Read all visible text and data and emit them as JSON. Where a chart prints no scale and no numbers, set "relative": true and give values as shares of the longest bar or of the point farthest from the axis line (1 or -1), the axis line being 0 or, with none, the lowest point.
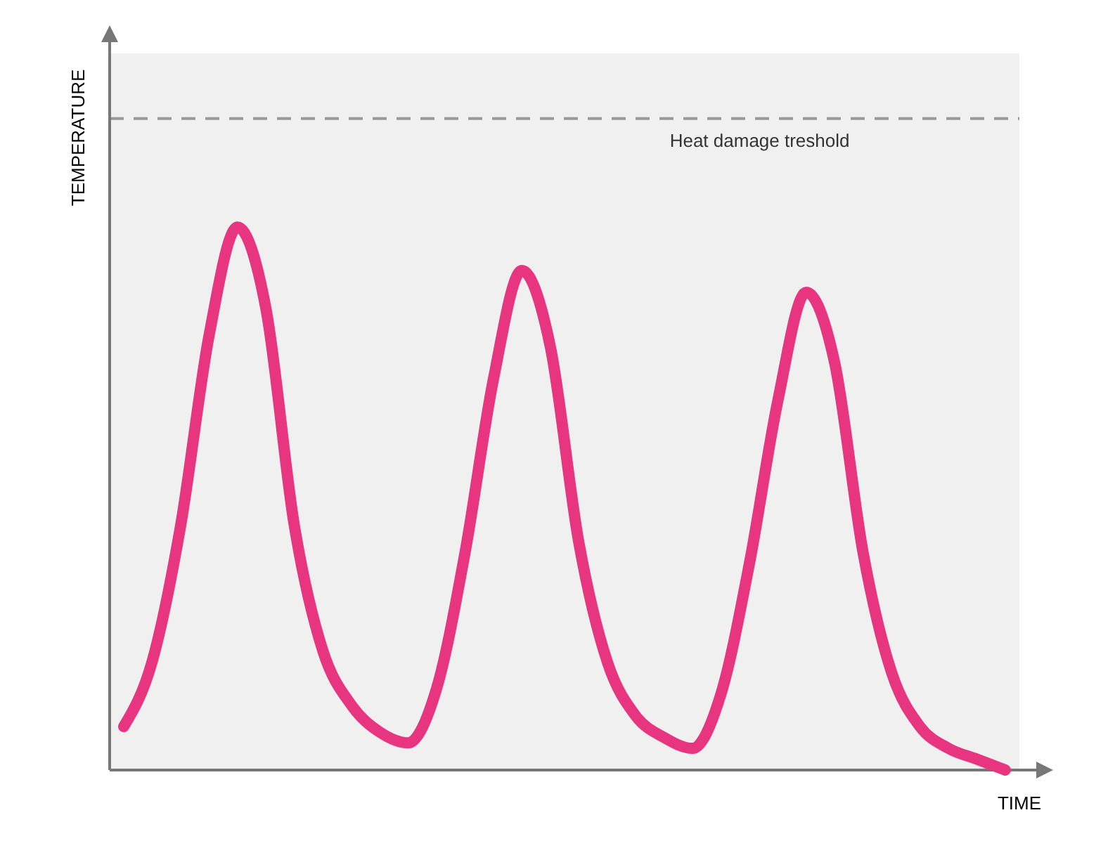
{
  "chart_data": {
    "type": "line",
    "relative": true,
    "xlabel": "TIME",
    "ylabel": "TEMPERATURE",
    "categories": [
      null,
      null,
      null,
      null,
      null,
      null,
      null,
      null,
      null,
      null,
      null,
      null,
      null,
      null,
      null,
      null,
      null,
      null,
      null,
      null,
      null,
      null,
      null,
      null,
      null,
      null,
      null,
      null,
      null,
      null,
      null,
      null
    ],
    "series": [
      {
        "color": "#e8357f",
        "values": [
          0.08,
          0.2,
          0.45,
          0.8,
          1.0,
          0.85,
          0.45,
          0.22,
          0.12,
          0.07,
          0.05,
          0.15,
          0.4,
          0.72,
          0.92,
          0.78,
          0.42,
          0.2,
          0.1,
          0.06,
          0.04,
          0.14,
          0.38,
          0.68,
          0.88,
          0.75,
          0.4,
          0.18,
          0.08,
          0.04,
          0.02,
          0
        ]
      }
    ],
    "ref_lines": [
      {
        "axis": "y",
        "value": 1.2,
        "label": "Heat damage treshold",
        "color": "#999999",
        "line_style": "dashed"
      }
    ],
    "marker": "none",
    "line_style": "solid"
  }
}
